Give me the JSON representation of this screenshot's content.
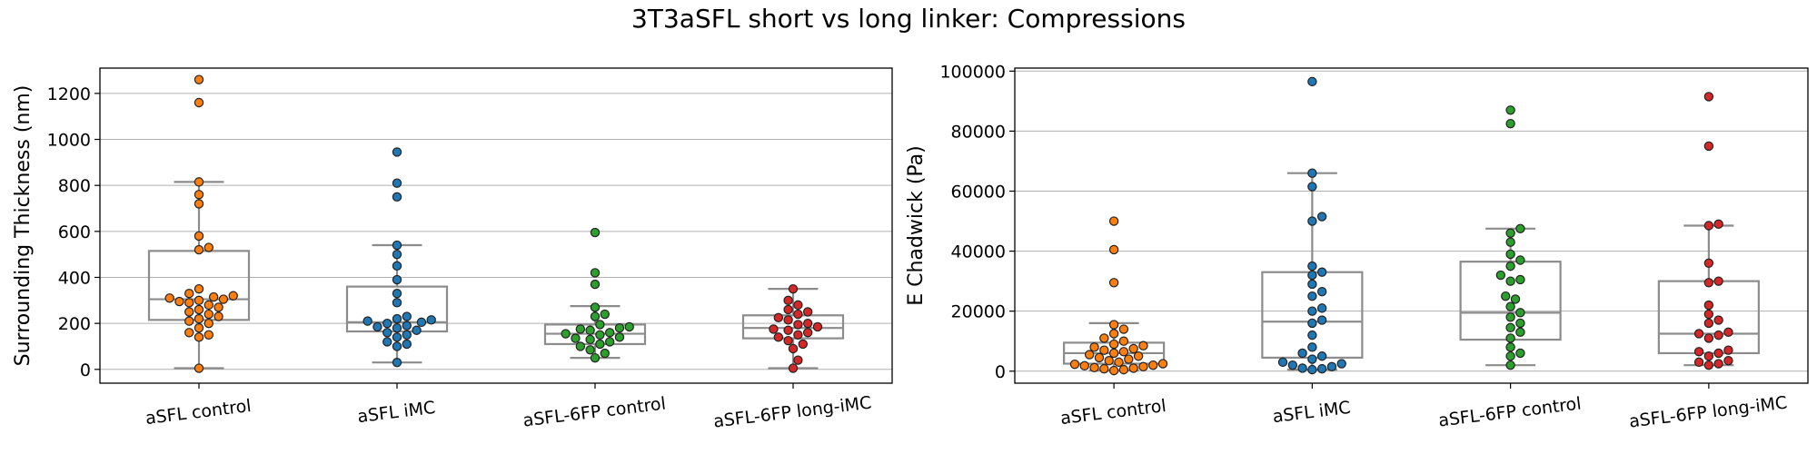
{
  "figure": {
    "title": "3T3aSFL short vs long linker: Compressions"
  },
  "colors": {
    "aSFL control": "#ff7f0e",
    "aSFL iMC": "#1f77b4",
    "aSFL-6FP control": "#2ca02c",
    "aSFL-6FP long-iMC": "#d62728"
  },
  "chart_data": [
    {
      "type": "box+swarm",
      "ylabel": "Surrounding Thickness (nm)",
      "ylim": [
        -60,
        1310
      ],
      "yticks": [
        0,
        200,
        400,
        600,
        800,
        1000,
        1200
      ],
      "grid": "horizontal",
      "categories": [
        "aSFL control",
        "aSFL iMC",
        "aSFL-6FP control",
        "aSFL-6FP long-iMC"
      ],
      "boxes": [
        {
          "whislo": 5,
          "q1": 215,
          "med": 305,
          "q3": 515,
          "whishi": 815
        },
        {
          "whislo": 30,
          "q1": 165,
          "med": 205,
          "q3": 360,
          "whishi": 540
        },
        {
          "whislo": 50,
          "q1": 110,
          "med": 155,
          "q3": 195,
          "whishi": 275
        },
        {
          "whislo": 5,
          "q1": 135,
          "med": 180,
          "q3": 235,
          "whishi": 350
        }
      ],
      "points": [
        [
          5,
          140,
          150,
          160,
          180,
          200,
          210,
          220,
          230,
          240,
          250,
          260,
          270,
          280,
          290,
          295,
          300,
          305,
          310,
          315,
          320,
          330,
          350,
          520,
          530,
          580,
          720,
          760,
          815,
          1160,
          1260
        ],
        [
          30,
          100,
          110,
          120,
          140,
          150,
          160,
          170,
          180,
          185,
          190,
          200,
          205,
          210,
          215,
          220,
          230,
          290,
          330,
          390,
          450,
          500,
          540,
          750,
          810,
          945
        ],
        [
          50,
          70,
          85,
          100,
          110,
          120,
          130,
          135,
          140,
          150,
          155,
          160,
          170,
          175,
          180,
          185,
          195,
          230,
          240,
          270,
          370,
          420,
          595
        ],
        [
          5,
          40,
          90,
          110,
          125,
          140,
          150,
          160,
          170,
          175,
          185,
          195,
          200,
          215,
          225,
          240,
          250,
          260,
          280,
          300,
          350
        ]
      ]
    },
    {
      "type": "box+swarm",
      "ylabel": "E Chadwick (Pa)",
      "ylim": [
        -4000,
        101000
      ],
      "yticks": [
        0,
        20000,
        40000,
        60000,
        80000,
        100000
      ],
      "grid": "horizontal",
      "categories": [
        "aSFL control",
        "aSFL iMC",
        "aSFL-6FP control",
        "aSFL-6FP long-iMC"
      ],
      "boxes": [
        {
          "whislo": 200,
          "q1": 2500,
          "med": 6000,
          "q3": 9500,
          "whishi": 16000
        },
        {
          "whislo": 500,
          "q1": 4500,
          "med": 16500,
          "q3": 33000,
          "whishi": 66000
        },
        {
          "whislo": 2000,
          "q1": 10500,
          "med": 19500,
          "q3": 36500,
          "whishi": 47500
        },
        {
          "whislo": 2000,
          "q1": 6000,
          "med": 12500,
          "q3": 30000,
          "whishi": 48500
        }
      ],
      "points": [
        [
          200,
          500,
          800,
          1000,
          1200,
          1500,
          1800,
          2000,
          2300,
          2500,
          3000,
          3500,
          4000,
          4500,
          5000,
          5500,
          6000,
          6500,
          7000,
          7500,
          8000,
          8500,
          9000,
          10000,
          11000,
          12500,
          14000,
          15500,
          29500,
          40500,
          50000
        ],
        [
          500,
          800,
          1000,
          1500,
          2000,
          2500,
          3000,
          4000,
          5000,
          6000,
          8000,
          12000,
          16000,
          17000,
          20000,
          21000,
          25000,
          26500,
          29000,
          32000,
          33000,
          35000,
          50000,
          51500,
          61500,
          66000,
          96500
        ],
        [
          2000,
          5000,
          6000,
          8000,
          11000,
          13000,
          14500,
          16000,
          18000,
          19500,
          21500,
          24000,
          25000,
          30000,
          30500,
          32000,
          35000,
          37000,
          39000,
          43000,
          46000,
          47500,
          82500,
          87000
        ],
        [
          2000,
          2500,
          3000,
          3500,
          5000,
          6000,
          6500,
          7000,
          11000,
          12000,
          12500,
          13000,
          16000,
          17000,
          19000,
          22000,
          29500,
          30000,
          36000,
          48500,
          49000,
          75000,
          91500
        ]
      ]
    }
  ]
}
